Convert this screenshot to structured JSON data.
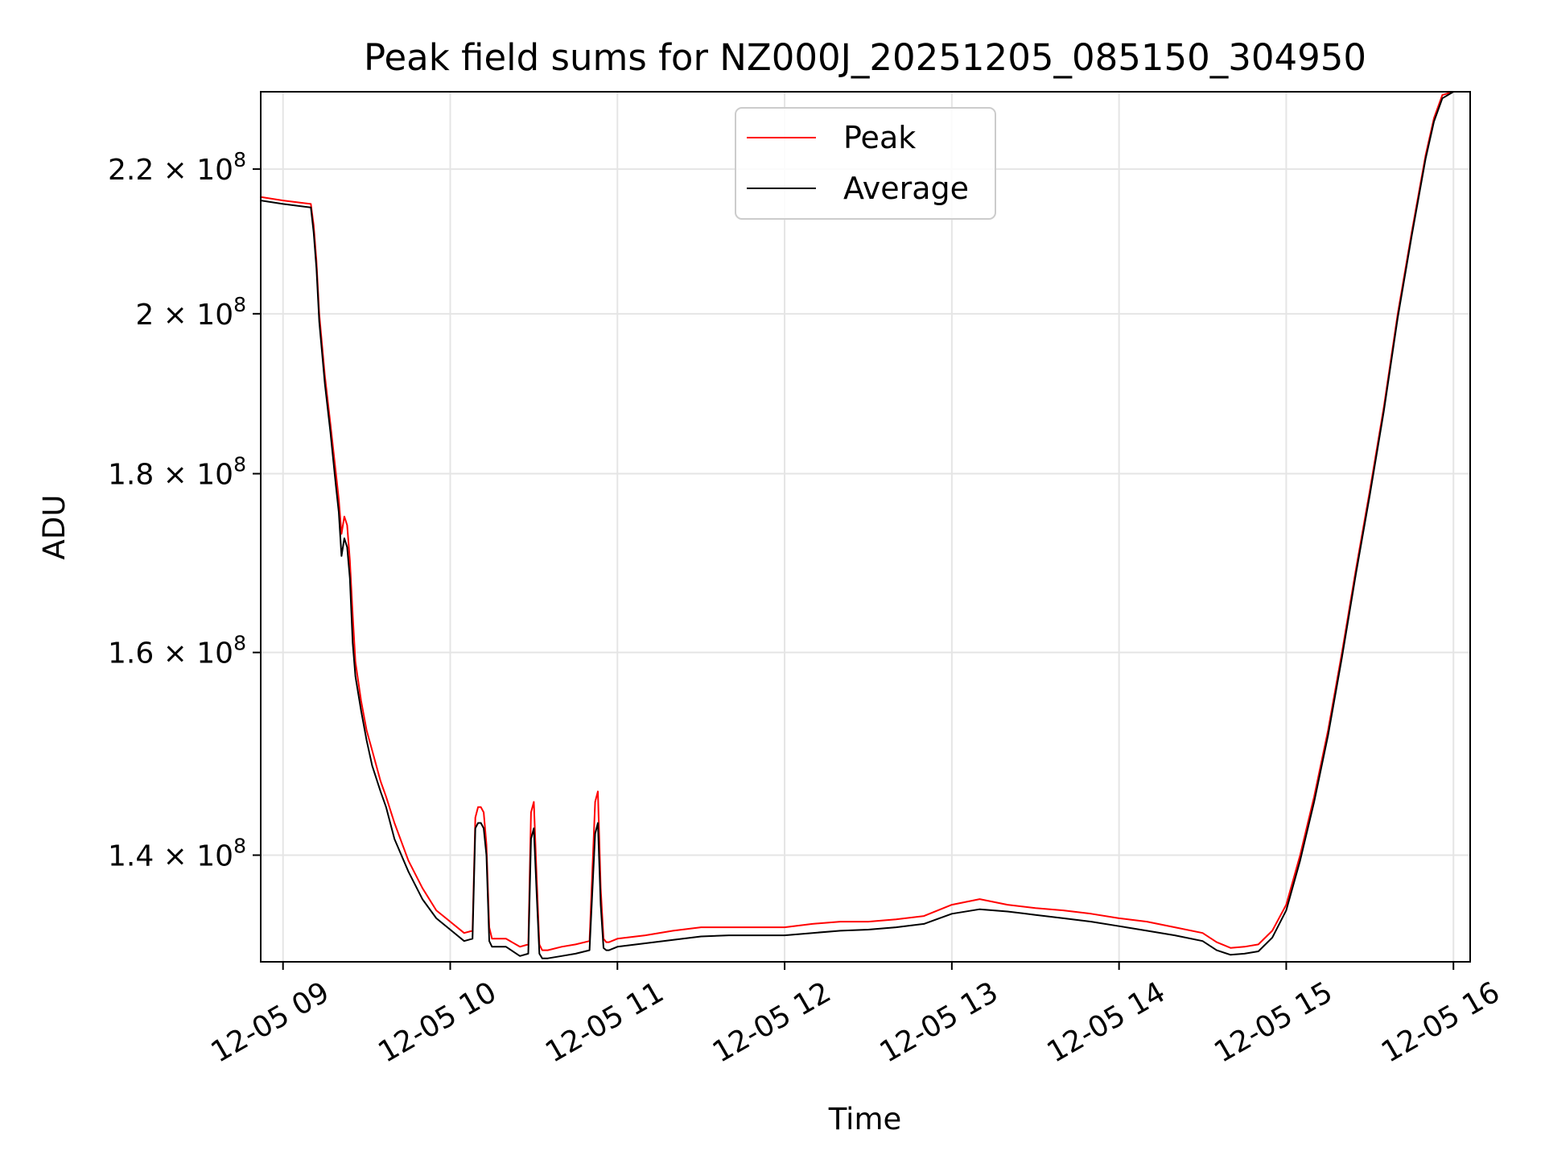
{
  "chart_data": {
    "type": "line",
    "title": "Peak field sums for NZ000J_20251205_085150_304950",
    "xlabel": "Time",
    "ylabel": "ADU",
    "yscale": "log",
    "xlim": [
      "2025-12-05 08:52",
      "2025-12-05 16:06"
    ],
    "ylim": [
      130500000,
      231500000
    ],
    "grid": true,
    "legend_position": "top-center",
    "x_ticks": [
      {
        "value": "2025-12-05 09:00",
        "label": "12-05 09"
      },
      {
        "value": "2025-12-05 10:00",
        "label": "12-05 10"
      },
      {
        "value": "2025-12-05 11:00",
        "label": "12-05 11"
      },
      {
        "value": "2025-12-05 12:00",
        "label": "12-05 12"
      },
      {
        "value": "2025-12-05 13:00",
        "label": "12-05 13"
      },
      {
        "value": "2025-12-05 14:00",
        "label": "12-05 14"
      },
      {
        "value": "2025-12-05 15:00",
        "label": "12-05 15"
      },
      {
        "value": "2025-12-05 16:00",
        "label": "12-05 16"
      }
    ],
    "y_ticks": [
      {
        "value": 140000000,
        "mantissa": "1.4",
        "exponent": "8"
      },
      {
        "value": 160000000,
        "mantissa": "1.6",
        "exponent": "8"
      },
      {
        "value": 180000000,
        "mantissa": "1.8",
        "exponent": "8"
      },
      {
        "value": 200000000,
        "mantissa": "2",
        "exponent": "8"
      },
      {
        "value": 220000000,
        "mantissa": "2.2",
        "exponent": "8"
      }
    ],
    "series": [
      {
        "name": "Peak",
        "color": "#ff0000",
        "x": [
          "2025-12-05 08:52",
          "2025-12-05 09:00",
          "2025-12-05 09:10",
          "2025-12-05 09:11",
          "2025-12-05 09:12",
          "2025-12-05 09:13",
          "2025-12-05 09:15",
          "2025-12-05 09:17",
          "2025-12-05 09:19",
          "2025-12-05 09:20",
          "2025-12-05 09:21",
          "2025-12-05 09:22",
          "2025-12-05 09:23",
          "2025-12-05 09:24",
          "2025-12-05 09:25",
          "2025-12-05 09:26",
          "2025-12-05 09:28",
          "2025-12-05 09:30",
          "2025-12-05 09:32",
          "2025-12-05 09:35",
          "2025-12-05 09:37",
          "2025-12-05 09:40",
          "2025-12-05 09:45",
          "2025-12-05 09:50",
          "2025-12-05 09:55",
          "2025-12-05 10:00",
          "2025-12-05 10:05",
          "2025-12-05 10:08",
          "2025-12-05 10:09",
          "2025-12-05 10:10",
          "2025-12-05 10:11",
          "2025-12-05 10:12",
          "2025-12-05 10:13",
          "2025-12-05 10:14",
          "2025-12-05 10:15",
          "2025-12-05 10:20",
          "2025-12-05 10:25",
          "2025-12-05 10:28",
          "2025-12-05 10:29",
          "2025-12-05 10:30",
          "2025-12-05 10:31",
          "2025-12-05 10:32",
          "2025-12-05 10:33",
          "2025-12-05 10:35",
          "2025-12-05 10:40",
          "2025-12-05 10:45",
          "2025-12-05 10:50",
          "2025-12-05 10:52",
          "2025-12-05 10:53",
          "2025-12-05 10:54",
          "2025-12-05 10:55",
          "2025-12-05 10:56",
          "2025-12-05 10:57",
          "2025-12-05 11:00",
          "2025-12-05 11:10",
          "2025-12-05 11:20",
          "2025-12-05 11:30",
          "2025-12-05 11:40",
          "2025-12-05 11:50",
          "2025-12-05 12:00",
          "2025-12-05 12:10",
          "2025-12-05 12:20",
          "2025-12-05 12:30",
          "2025-12-05 12:40",
          "2025-12-05 12:50",
          "2025-12-05 13:00",
          "2025-12-05 13:10",
          "2025-12-05 13:20",
          "2025-12-05 13:30",
          "2025-12-05 13:40",
          "2025-12-05 13:50",
          "2025-12-05 14:00",
          "2025-12-05 14:10",
          "2025-12-05 14:20",
          "2025-12-05 14:30",
          "2025-12-05 14:35",
          "2025-12-05 14:40",
          "2025-12-05 14:45",
          "2025-12-05 14:50",
          "2025-12-05 14:55",
          "2025-12-05 15:00",
          "2025-12-05 15:05",
          "2025-12-05 15:10",
          "2025-12-05 15:15",
          "2025-12-05 15:20",
          "2025-12-05 15:25",
          "2025-12-05 15:30",
          "2025-12-05 15:35",
          "2025-12-05 15:40",
          "2025-12-05 15:45",
          "2025-12-05 15:50",
          "2025-12-05 15:53",
          "2025-12-05 15:56",
          "2025-12-05 16:00",
          "2025-12-05 16:06"
        ],
        "values": [
          216000000,
          215500000,
          215000000,
          212000000,
          207000000,
          200000000,
          192000000,
          186000000,
          180000000,
          177000000,
          173000000,
          175000000,
          174000000,
          170000000,
          164000000,
          159000000,
          155000000,
          152000000,
          150000000,
          147000000,
          145500000,
          143000000,
          139500000,
          137000000,
          135000000,
          134000000,
          133000000,
          133200000,
          143500000,
          144500000,
          144500000,
          144000000,
          141000000,
          133500000,
          132500000,
          132500000,
          131800000,
          132000000,
          144000000,
          145000000,
          138000000,
          132000000,
          131500000,
          131500000,
          131800000,
          132000000,
          132300000,
          145000000,
          146000000,
          137000000,
          132500000,
          132200000,
          132200000,
          132500000,
          132800000,
          133200000,
          133500000,
          133500000,
          133500000,
          133500000,
          133800000,
          134000000,
          134000000,
          134200000,
          134500000,
          135500000,
          136000000,
          135500000,
          135200000,
          135000000,
          134700000,
          134300000,
          134000000,
          133500000,
          133000000,
          132200000,
          131700000,
          131800000,
          132000000,
          133200000,
          135500000,
          140000000,
          145500000,
          152000000,
          160000000,
          169000000,
          178000000,
          188000000,
          200000000,
          211000000,
          222000000,
          227500000,
          231000000,
          231500000,
          231500000
        ]
      },
      {
        "name": "Average",
        "color": "#000000",
        "x": [
          "2025-12-05 08:52",
          "2025-12-05 09:00",
          "2025-12-05 09:10",
          "2025-12-05 09:11",
          "2025-12-05 09:12",
          "2025-12-05 09:13",
          "2025-12-05 09:15",
          "2025-12-05 09:17",
          "2025-12-05 09:19",
          "2025-12-05 09:20",
          "2025-12-05 09:21",
          "2025-12-05 09:22",
          "2025-12-05 09:23",
          "2025-12-05 09:24",
          "2025-12-05 09:25",
          "2025-12-05 09:26",
          "2025-12-05 09:28",
          "2025-12-05 09:30",
          "2025-12-05 09:32",
          "2025-12-05 09:35",
          "2025-12-05 09:37",
          "2025-12-05 09:40",
          "2025-12-05 09:45",
          "2025-12-05 09:50",
          "2025-12-05 09:55",
          "2025-12-05 10:00",
          "2025-12-05 10:05",
          "2025-12-05 10:08",
          "2025-12-05 10:09",
          "2025-12-05 10:10",
          "2025-12-05 10:11",
          "2025-12-05 10:12",
          "2025-12-05 10:13",
          "2025-12-05 10:14",
          "2025-12-05 10:15",
          "2025-12-05 10:20",
          "2025-12-05 10:25",
          "2025-12-05 10:28",
          "2025-12-05 10:29",
          "2025-12-05 10:30",
          "2025-12-05 10:31",
          "2025-12-05 10:32",
          "2025-12-05 10:33",
          "2025-12-05 10:35",
          "2025-12-05 10:40",
          "2025-12-05 10:45",
          "2025-12-05 10:50",
          "2025-12-05 10:52",
          "2025-12-05 10:53",
          "2025-12-05 10:54",
          "2025-12-05 10:55",
          "2025-12-05 10:56",
          "2025-12-05 10:57",
          "2025-12-05 11:00",
          "2025-12-05 11:10",
          "2025-12-05 11:20",
          "2025-12-05 11:30",
          "2025-12-05 11:40",
          "2025-12-05 11:50",
          "2025-12-05 12:00",
          "2025-12-05 12:10",
          "2025-12-05 12:20",
          "2025-12-05 12:30",
          "2025-12-05 12:40",
          "2025-12-05 12:50",
          "2025-12-05 13:00",
          "2025-12-05 13:10",
          "2025-12-05 13:20",
          "2025-12-05 13:30",
          "2025-12-05 13:40",
          "2025-12-05 13:50",
          "2025-12-05 14:00",
          "2025-12-05 14:10",
          "2025-12-05 14:20",
          "2025-12-05 14:30",
          "2025-12-05 14:35",
          "2025-12-05 14:40",
          "2025-12-05 14:45",
          "2025-12-05 14:50",
          "2025-12-05 14:55",
          "2025-12-05 15:00",
          "2025-12-05 15:05",
          "2025-12-05 15:10",
          "2025-12-05 15:15",
          "2025-12-05 15:20",
          "2025-12-05 15:25",
          "2025-12-05 15:30",
          "2025-12-05 15:35",
          "2025-12-05 15:40",
          "2025-12-05 15:45",
          "2025-12-05 15:50",
          "2025-12-05 15:53",
          "2025-12-05 15:56",
          "2025-12-05 16:00",
          "2025-12-05 16:06"
        ],
        "values": [
          215500000,
          215000000,
          214500000,
          211000000,
          206000000,
          199000000,
          191000000,
          185000000,
          178500000,
          175500000,
          170500000,
          172500000,
          171500000,
          168000000,
          161000000,
          157500000,
          154000000,
          151000000,
          148500000,
          146000000,
          144500000,
          141500000,
          138500000,
          136000000,
          134300000,
          133300000,
          132300000,
          132500000,
          142500000,
          143000000,
          143000000,
          142500000,
          140000000,
          132300000,
          131800000,
          131800000,
          131000000,
          131200000,
          141500000,
          142500000,
          136500000,
          131200000,
          130800000,
          130800000,
          131000000,
          131200000,
          131500000,
          142000000,
          143000000,
          135500000,
          131700000,
          131500000,
          131500000,
          131800000,
          132100000,
          132400000,
          132700000,
          132800000,
          132800000,
          132800000,
          133000000,
          133200000,
          133300000,
          133500000,
          133800000,
          134700000,
          135100000,
          134900000,
          134600000,
          134300000,
          134000000,
          133600000,
          133200000,
          132800000,
          132300000,
          131500000,
          131100000,
          131200000,
          131400000,
          132600000,
          135000000,
          139500000,
          145000000,
          151500000,
          159500000,
          168500000,
          177500000,
          187500000,
          199500000,
          210500000,
          221500000,
          227000000,
          230500000,
          231500000,
          231500000
        ]
      }
    ]
  }
}
